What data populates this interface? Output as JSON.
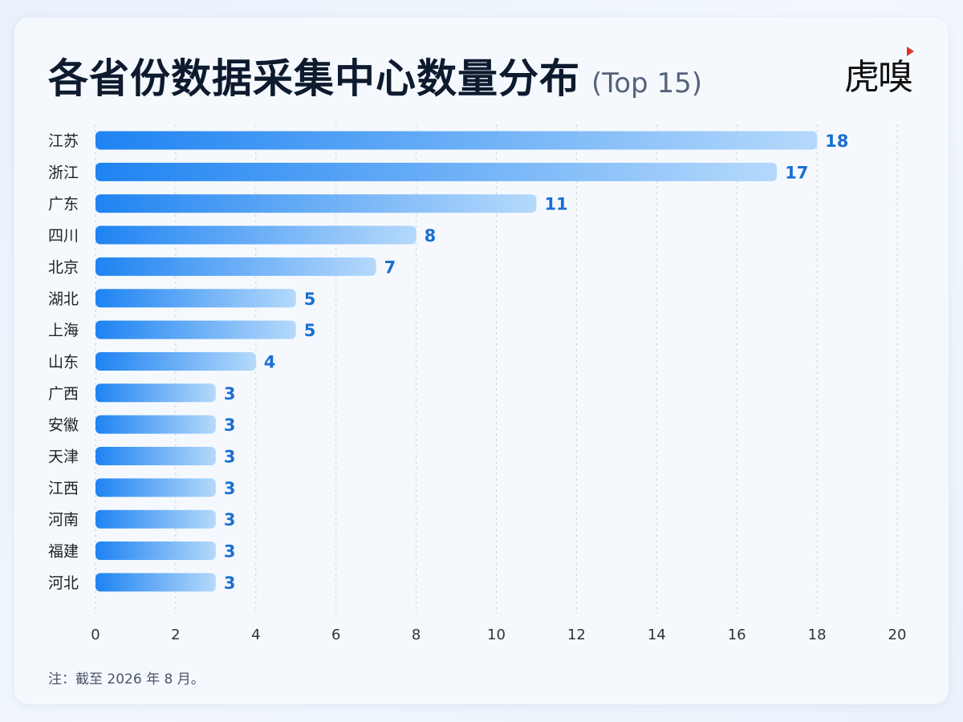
{
  "header": {
    "title": "各省份数据采集中心数量分布",
    "subtitle": "(Top 15)"
  },
  "logo": {
    "text": "虎嗅"
  },
  "footnote": "注：截至 2026 年 8 月。",
  "colors": {
    "bar_start": "#1e83f2",
    "bar_end": "#b5d9fb",
    "value_label": "#1a6fd1",
    "grid": "#c9d4e0",
    "axis_text": "#333333",
    "category_text": "#222222"
  },
  "chart_data": {
    "type": "bar",
    "orientation": "horizontal",
    "categories": [
      "江苏",
      "浙江",
      "广东",
      "四川",
      "北京",
      "湖北",
      "上海",
      "山东",
      "广西",
      "安徽",
      "天津",
      "江西",
      "河南",
      "福建",
      "河北"
    ],
    "values": [
      18,
      17,
      11,
      8,
      7,
      5,
      5,
      4,
      3,
      3,
      3,
      3,
      3,
      3,
      3
    ],
    "xlim": [
      0,
      20
    ],
    "xticks": [
      0,
      2,
      4,
      6,
      8,
      10,
      12,
      14,
      16,
      18,
      20
    ],
    "grid": "vertical-dashed",
    "legend": "none",
    "data_labels": true
  }
}
